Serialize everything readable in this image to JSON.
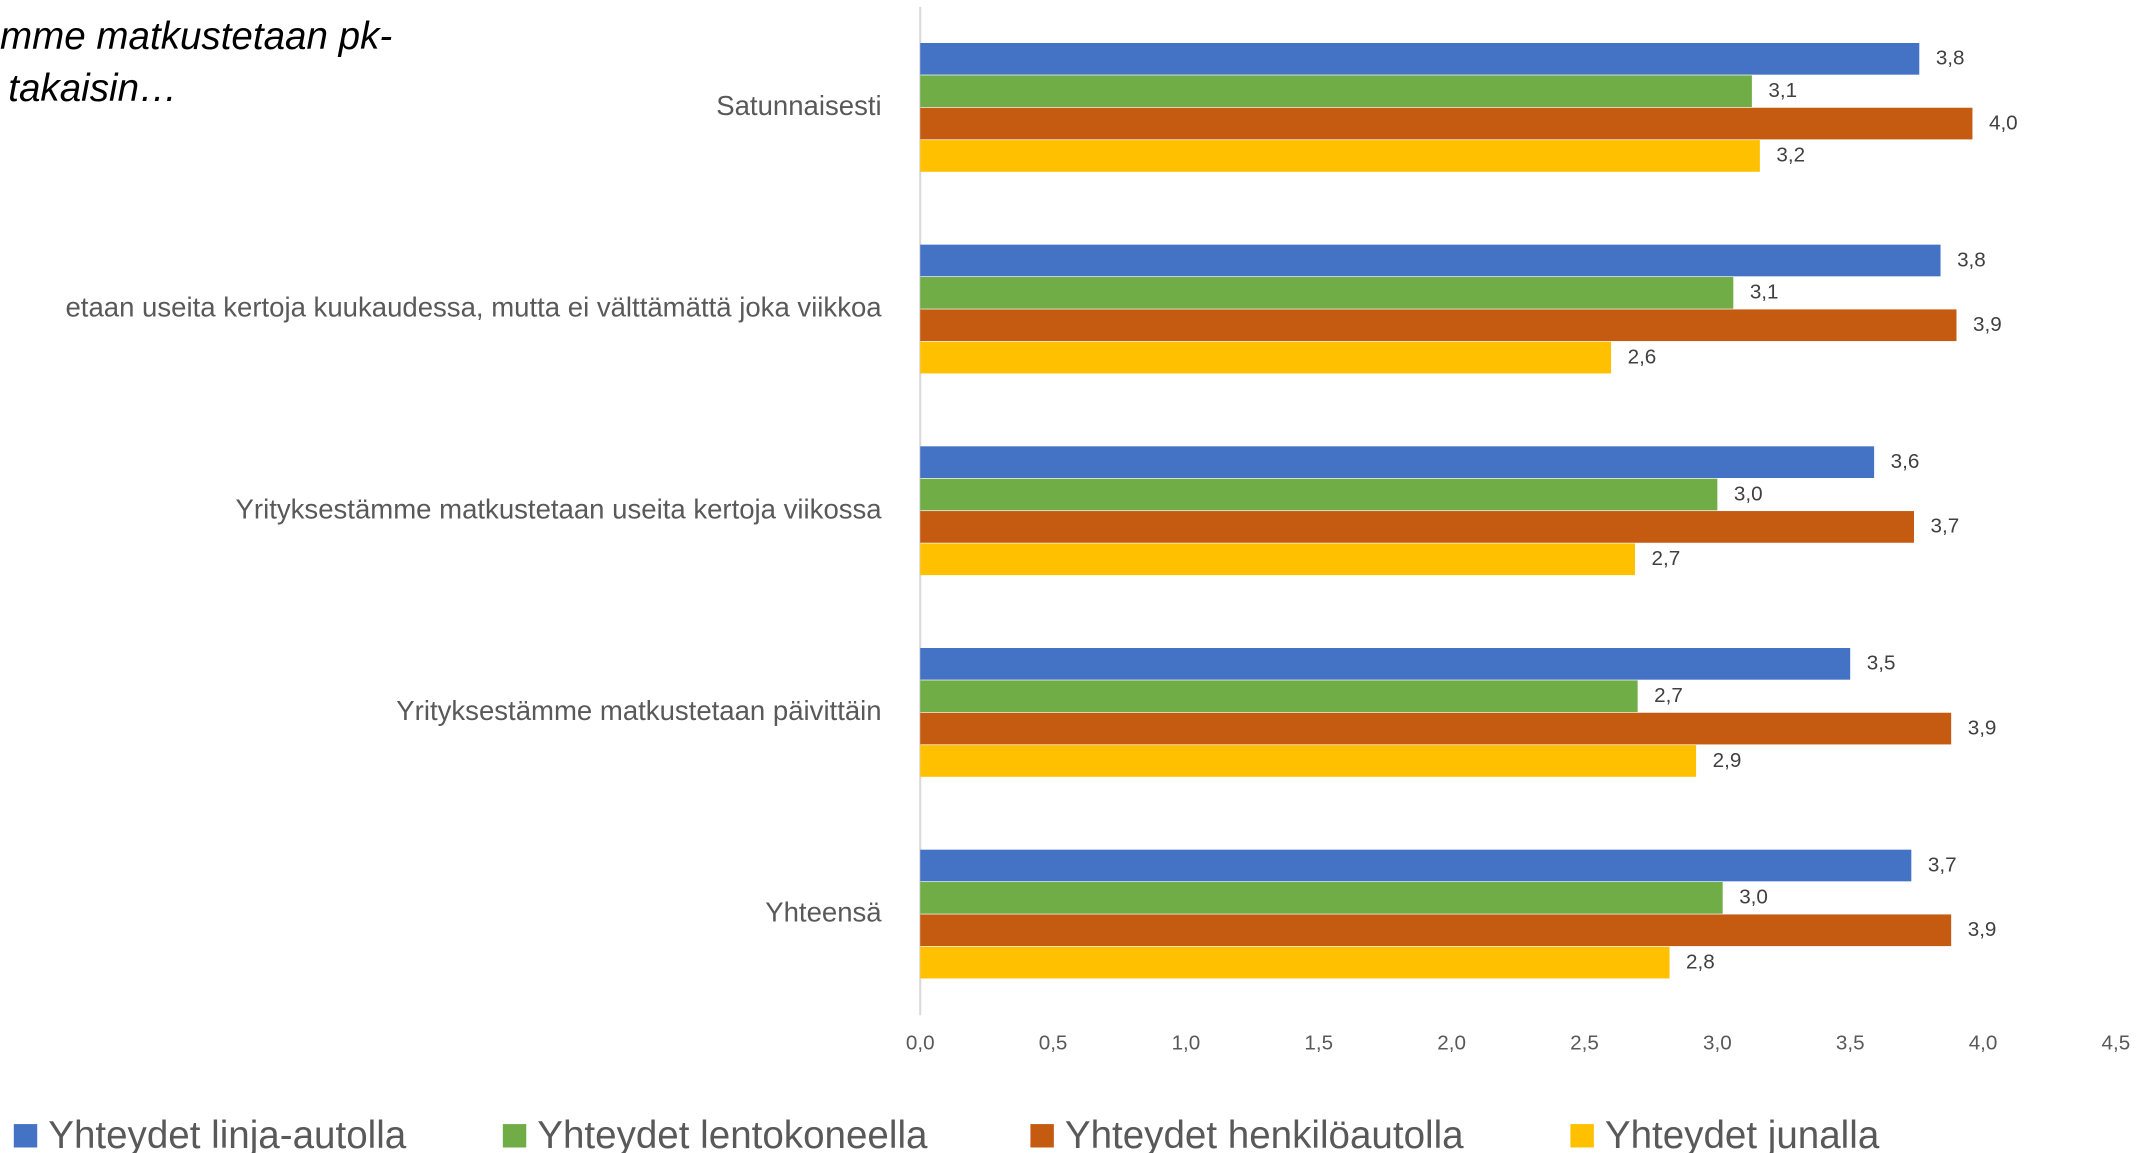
{
  "chart_data": {
    "type": "hbar",
    "title_lines": [
      "mme matkustetaan pk-",
      "takaisin…"
    ],
    "categories": [
      "Satunnaisesti",
      "etaan useita kertoja kuukaudessa, mutta ei välttämättä joka viikkoa",
      "Yrityksestämme matkustetaan useita kertoja viikossa",
      "Yrityksestämme matkustetaan päivittäin",
      "Yhteensä"
    ],
    "series": [
      {
        "name": "Yhteydet linja-autolla",
        "color": "#4472c4",
        "values": [
          3.76,
          3.84,
          3.59,
          3.5,
          3.73
        ],
        "value_labels": [
          "3,8",
          "3,8",
          "3,6",
          "3,5",
          "3,7"
        ]
      },
      {
        "name": "Yhteydet lentokoneella",
        "color": "#70ad47",
        "values": [
          3.13,
          3.06,
          3.0,
          2.7,
          3.02
        ],
        "value_labels": [
          "3,1",
          "3,1",
          "3,0",
          "2,7",
          "3,0"
        ]
      },
      {
        "name": "Yhteydet henkilöautolla",
        "color": "#c55a11",
        "values": [
          3.96,
          3.9,
          3.74,
          3.88,
          3.88
        ],
        "value_labels": [
          "4,0",
          "3,9",
          "3,7",
          "3,9",
          "3,9"
        ]
      },
      {
        "name": "Yhteydet junalla",
        "color": "#ffc000",
        "values": [
          3.16,
          2.6,
          2.69,
          2.92,
          2.82
        ],
        "value_labels": [
          "3,2",
          "2,6",
          "2,7",
          "2,9",
          "2,8"
        ]
      }
    ],
    "xlim": [
      0,
      4.5
    ],
    "xticks": [
      {
        "value": 0,
        "label": "0,0"
      },
      {
        "value": 0.5,
        "label": "0,5"
      },
      {
        "value": 1,
        "label": "1,0"
      },
      {
        "value": 1.5,
        "label": "1,5"
      },
      {
        "value": 2,
        "label": "2,0"
      },
      {
        "value": 2.5,
        "label": "2,5"
      },
      {
        "value": 3,
        "label": "3,0"
      },
      {
        "value": 3.5,
        "label": "3,5"
      },
      {
        "value": 4,
        "label": "4,0"
      },
      {
        "value": 4.5,
        "label": "4,5"
      }
    ],
    "grid": false,
    "legend": "bottom"
  }
}
